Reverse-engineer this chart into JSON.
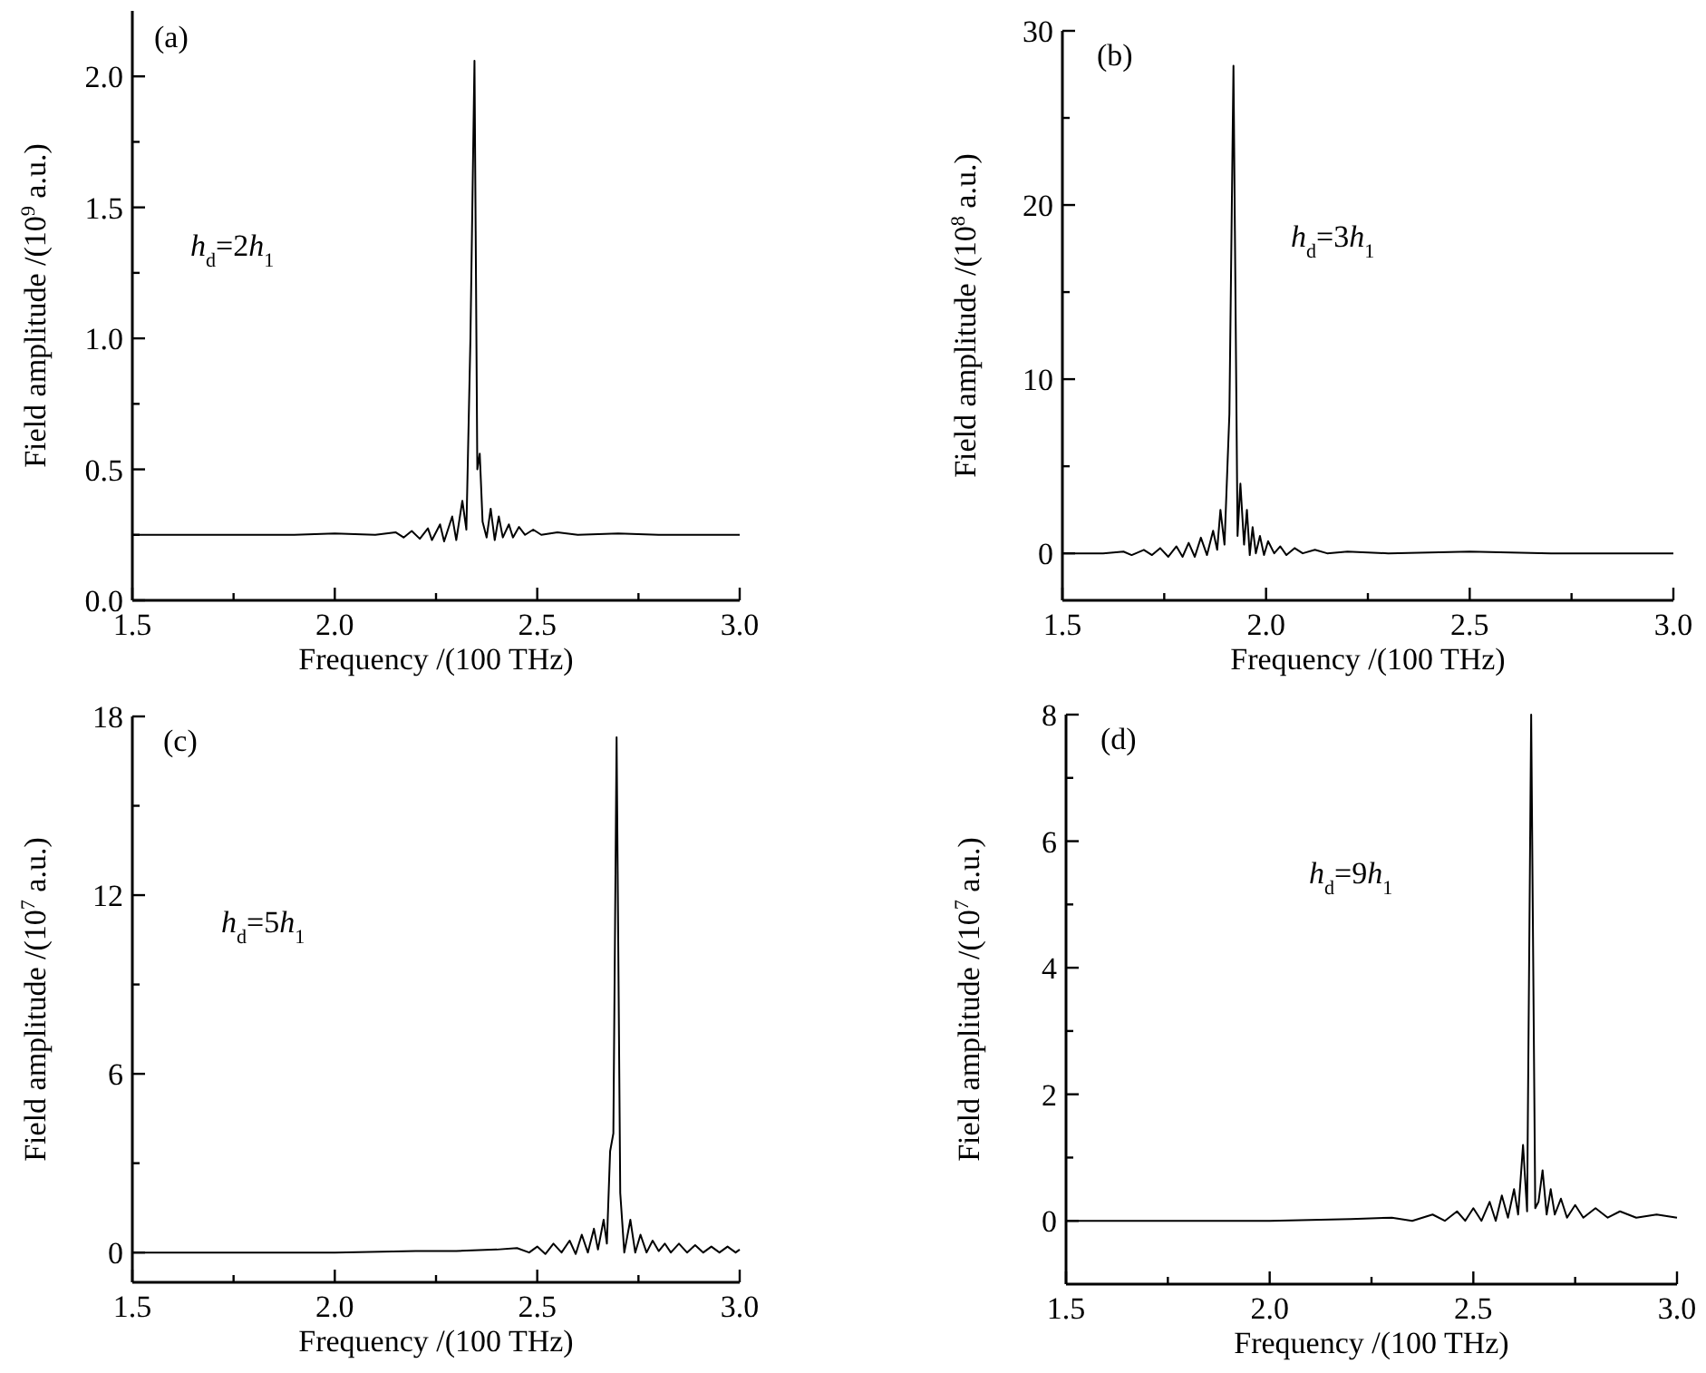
{
  "chart_data": [
    {
      "type": "line",
      "xlabel": "Frequency /(100 THz)",
      "ylabel": "Field amplitude /(10$^{9}$ a.u.)",
      "annotations": [
        "(a)",
        "h$_{d}$=2h$_{1}$"
      ],
      "xlim": [
        1.5,
        3.0
      ],
      "ylim": [
        0,
        2.25
      ],
      "xticks": [
        {
          "value": 1.5,
          "label": "1.5"
        },
        {
          "value": 1.75,
          "label": null
        },
        {
          "value": 2,
          "label": "2.0"
        },
        {
          "value": 2.25,
          "label": null
        },
        {
          "value": 2.5,
          "label": "2.5"
        },
        {
          "value": 2.75,
          "label": null
        },
        {
          "value": 3,
          "label": "3.0"
        }
      ],
      "yticks": [
        {
          "value": 0,
          "label": "0.0"
        },
        {
          "value": 0.25,
          "label": null
        },
        0.5,
        {
          "value": 0.75,
          "label": null
        },
        {
          "value": 1,
          "label": "1.0"
        },
        {
          "value": 1.25,
          "label": null
        },
        1.5,
        {
          "value": 1.75,
          "label": null
        },
        {
          "value": 2,
          "label": "2.0"
        }
      ],
      "series": [
        {
          "color": "#000000",
          "x": [
            1.5,
            1.8,
            1.9,
            2.0,
            2.1,
            2.15,
            2.17,
            2.19,
            2.21,
            2.23,
            2.24,
            2.26,
            2.27,
            2.29,
            2.3,
            2.315,
            2.325,
            2.335,
            2.345,
            2.352,
            2.358,
            2.365,
            2.375,
            2.385,
            2.395,
            2.405,
            2.415,
            2.43,
            2.44,
            2.455,
            2.47,
            2.49,
            2.51,
            2.55,
            2.6,
            2.7,
            2.8,
            3.0
          ],
          "values": [
            0.25,
            0.25,
            0.25,
            0.255,
            0.25,
            0.26,
            0.24,
            0.265,
            0.235,
            0.275,
            0.23,
            0.29,
            0.225,
            0.32,
            0.23,
            0.38,
            0.27,
            1.0,
            2.06,
            0.5,
            0.56,
            0.3,
            0.24,
            0.35,
            0.23,
            0.32,
            0.24,
            0.29,
            0.24,
            0.28,
            0.25,
            0.27,
            0.25,
            0.26,
            0.25,
            0.255,
            0.25,
            0.25
          ]
        }
      ]
    },
    {
      "type": "line",
      "xlabel": "Frequency /(100 THz)",
      "ylabel": "Field amplitude /(10$^{8}$ a.u.)",
      "annotations": [
        "(b)",
        "h$_{d}$=3h$_{1}$"
      ],
      "xlim": [
        1.5,
        3.0
      ],
      "ylim": [
        -2.7,
        30
      ],
      "xticks": [
        {
          "value": 1.5,
          "label": "1.5"
        },
        {
          "value": 1.75,
          "label": null
        },
        {
          "value": 2,
          "label": "2.0"
        },
        {
          "value": 2.25,
          "label": null
        },
        {
          "value": 2.5,
          "label": "2.5"
        },
        {
          "value": 2.75,
          "label": null
        },
        {
          "value": 3,
          "label": "3.0"
        }
      ],
      "yticks": [
        0,
        {
          "value": 5,
          "label": null
        },
        10,
        {
          "value": 15,
          "label": null
        },
        20,
        {
          "value": 25,
          "label": null
        },
        30
      ],
      "series": [
        {
          "color": "#000000",
          "x": [
            1.5,
            1.6,
            1.65,
            1.67,
            1.7,
            1.72,
            1.74,
            1.76,
            1.78,
            1.795,
            1.81,
            1.825,
            1.84,
            1.855,
            1.87,
            1.88,
            1.888,
            1.898,
            1.91,
            1.92,
            1.93,
            1.937,
            1.946,
            1.953,
            1.96,
            1.967,
            1.975,
            1.985,
            1.995,
            2.005,
            2.02,
            2.035,
            2.05,
            2.07,
            2.09,
            2.12,
            2.15,
            2.2,
            2.3,
            2.5,
            2.7,
            3.0
          ],
          "values": [
            0,
            0,
            0.1,
            -0.1,
            0.2,
            -0.1,
            0.3,
            -0.2,
            0.4,
            -0.2,
            0.6,
            -0.2,
            0.9,
            -0.1,
            1.3,
            0.2,
            2.5,
            0.5,
            8,
            28,
            1,
            4,
            0.5,
            2.5,
            -0.1,
            1.5,
            0,
            1,
            -0.1,
            0.7,
            0,
            0.4,
            -0.1,
            0.3,
            0,
            0.2,
            0,
            0.1,
            0,
            0.1,
            0,
            0
          ]
        }
      ]
    },
    {
      "type": "line",
      "xlabel": "Frequency /(100 THz)",
      "ylabel": "Field amplitude /(10$^{7}$ a.u.)",
      "annotations": [
        "(c)",
        "h$_{d}$=5h$_{1}$"
      ],
      "xlim": [
        1.5,
        3.0
      ],
      "ylim": [
        -1,
        18
      ],
      "xticks": [
        {
          "value": 1.5,
          "label": "1.5"
        },
        {
          "value": 1.75,
          "label": null
        },
        {
          "value": 2,
          "label": "2.0"
        },
        {
          "value": 2.25,
          "label": null
        },
        {
          "value": 2.5,
          "label": "2.5"
        },
        {
          "value": 2.75,
          "label": null
        },
        {
          "value": 3,
          "label": "3.0"
        }
      ],
      "yticks": [
        0,
        {
          "value": 3,
          "label": null
        },
        6,
        {
          "value": 9,
          "label": null
        },
        12,
        {
          "value": 15,
          "label": null
        },
        18
      ],
      "series": [
        {
          "color": "#000000",
          "x": [
            1.5,
            2.0,
            2.2,
            2.3,
            2.4,
            2.45,
            2.48,
            2.5,
            2.52,
            2.54,
            2.56,
            2.58,
            2.595,
            2.61,
            2.625,
            2.64,
            2.65,
            2.664,
            2.672,
            2.68,
            2.688,
            2.696,
            2.705,
            2.715,
            2.73,
            2.742,
            2.755,
            2.77,
            2.785,
            2.8,
            2.815,
            2.83,
            2.85,
            2.87,
            2.89,
            2.91,
            2.93,
            2.95,
            2.97,
            2.99,
            3.0
          ],
          "values": [
            0,
            0,
            0.05,
            0.05,
            0.1,
            0.15,
            0,
            0.2,
            -0.05,
            0.3,
            0,
            0.4,
            -0.05,
            0.6,
            0,
            0.8,
            0.1,
            1.1,
            0.3,
            3.4,
            4,
            17.3,
            2,
            0,
            1.1,
            0,
            0.6,
            0,
            0.4,
            0.05,
            0.3,
            0,
            0.3,
            0,
            0.25,
            0,
            0.2,
            0,
            0.2,
            0,
            0.1
          ]
        }
      ]
    },
    {
      "type": "line",
      "xlabel": "Frequency /(100 THz)",
      "ylabel": "Field amplitude /(10$^{7}$ a.u.)",
      "annotations": [
        "(d)",
        "h$_{d}$=9h$_{1}$"
      ],
      "xlim": [
        1.5,
        3.0
      ],
      "ylim": [
        -1,
        8
      ],
      "xticks": [
        {
          "value": 1.5,
          "label": "1.5"
        },
        {
          "value": 1.75,
          "label": null
        },
        {
          "value": 2,
          "label": "2.0"
        },
        {
          "value": 2.25,
          "label": null
        },
        {
          "value": 2.5,
          "label": "2.5"
        },
        {
          "value": 2.75,
          "label": null
        },
        {
          "value": 3,
          "label": "3.0"
        }
      ],
      "yticks": [
        0,
        {
          "value": 1,
          "label": null
        },
        2,
        {
          "value": 3,
          "label": null
        },
        4,
        {
          "value": 5,
          "label": null
        },
        6,
        {
          "value": 7,
          "label": null
        },
        8
      ],
      "series": [
        {
          "color": "#000000",
          "x": [
            1.5,
            2.0,
            2.2,
            2.3,
            2.35,
            2.4,
            2.43,
            2.46,
            2.48,
            2.5,
            2.52,
            2.54,
            2.555,
            2.57,
            2.585,
            2.6,
            2.61,
            2.622,
            2.632,
            2.642,
            2.652,
            2.66,
            2.67,
            2.68,
            2.69,
            2.7,
            2.715,
            2.73,
            2.75,
            2.77,
            2.8,
            2.83,
            2.86,
            2.9,
            2.95,
            3.0
          ],
          "values": [
            0,
            0,
            0.03,
            0.05,
            0,
            0.1,
            0,
            0.15,
            0,
            0.2,
            0,
            0.3,
            0,
            0.4,
            0.05,
            0.5,
            0.1,
            1.2,
            0.15,
            8,
            0.2,
            0.3,
            0.8,
            0.1,
            0.5,
            0.1,
            0.35,
            0.05,
            0.25,
            0.05,
            0.2,
            0.05,
            0.15,
            0.05,
            0.1,
            0.05
          ]
        }
      ]
    }
  ]
}
